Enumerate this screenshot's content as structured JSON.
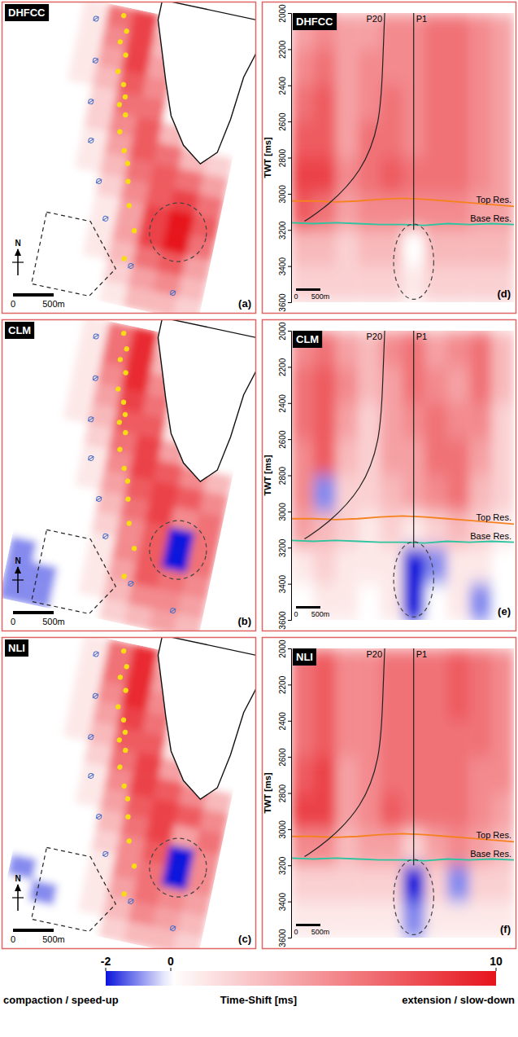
{
  "chart_data": [
    {
      "type": "heatmap",
      "title": "DHFCC",
      "panel_label": "(a)",
      "tick_labels": false,
      "north": "N",
      "scale_bar": [
        "0",
        "500m"
      ],
      "cells": [
        [
          0,
          1,
          6,
          8,
          2,
          0,
          0,
          0
        ],
        [
          0,
          1,
          5,
          8,
          3,
          0,
          0,
          0
        ],
        [
          0,
          1,
          4,
          8,
          4,
          0,
          0,
          0
        ],
        [
          0,
          1,
          3,
          7,
          5,
          0,
          0,
          0
        ],
        [
          0,
          0,
          2,
          6,
          6,
          0,
          0,
          0
        ],
        [
          0,
          0,
          2,
          5,
          7,
          3,
          0,
          0
        ],
        [
          0,
          0,
          1,
          4,
          7,
          6,
          3,
          2
        ],
        [
          0,
          0,
          1,
          3,
          6,
          7,
          6,
          4
        ],
        [
          0,
          0,
          0,
          2,
          5,
          7,
          8,
          6
        ],
        [
          0,
          0,
          0,
          1,
          4,
          8,
          10,
          7
        ],
        [
          0,
          0,
          0,
          1,
          4,
          8,
          10,
          6
        ],
        [
          0,
          0,
          0,
          1,
          3,
          6,
          7,
          4
        ],
        [
          0,
          0,
          0,
          0,
          2,
          4,
          5,
          3
        ],
        [
          0,
          0,
          0,
          0,
          1,
          3,
          3,
          2
        ]
      ]
    },
    {
      "type": "heatmap",
      "title": "CLM",
      "panel_label": "(b)",
      "tick_labels": false,
      "north": "N",
      "scale_bar": [
        "0",
        "500m"
      ],
      "cells": [
        [
          0,
          1,
          6,
          9,
          2,
          0,
          0,
          0
        ],
        [
          0,
          1,
          6,
          9,
          3,
          0,
          0,
          0
        ],
        [
          0,
          1,
          5,
          9,
          5,
          0,
          0,
          0
        ],
        [
          0,
          1,
          4,
          8,
          6,
          0,
          0,
          0
        ],
        [
          0,
          1,
          3,
          7,
          7,
          1,
          0,
          0
        ],
        [
          0,
          0,
          2,
          6,
          8,
          4,
          1,
          0
        ],
        [
          0,
          0,
          1,
          5,
          8,
          7,
          5,
          3
        ],
        [
          0,
          0,
          1,
          4,
          7,
          8,
          7,
          5
        ],
        [
          0,
          0,
          0,
          3,
          6,
          8,
          5,
          6
        ],
        [
          0,
          0,
          0,
          2,
          5,
          7,
          -2,
          6
        ],
        [
          0,
          0,
          0,
          1,
          5,
          7,
          -2,
          6
        ],
        [
          -1,
          0,
          0,
          1,
          4,
          7,
          6,
          5
        ],
        [
          -1,
          -1,
          0,
          1,
          3,
          5,
          5,
          4
        ],
        [
          -1,
          -1,
          0,
          0,
          2,
          3,
          4,
          3
        ]
      ]
    },
    {
      "type": "heatmap",
      "title": "NLI",
      "panel_label": "(c)",
      "tick_labels": false,
      "north": "N",
      "scale_bar": [
        "0",
        "500m"
      ],
      "cells": [
        [
          0,
          1,
          6,
          9,
          3,
          0,
          0,
          0
        ],
        [
          0,
          1,
          6,
          9,
          4,
          0,
          0,
          0
        ],
        [
          0,
          1,
          5,
          9,
          5,
          0,
          0,
          0
        ],
        [
          0,
          1,
          4,
          8,
          6,
          0,
          0,
          0
        ],
        [
          0,
          1,
          3,
          7,
          7,
          1,
          0,
          0
        ],
        [
          0,
          0,
          2,
          6,
          8,
          4,
          1,
          0
        ],
        [
          0,
          0,
          1,
          5,
          8,
          7,
          5,
          3
        ],
        [
          0,
          0,
          1,
          4,
          7,
          8,
          7,
          5
        ],
        [
          0,
          0,
          0,
          3,
          6,
          8,
          4,
          6
        ],
        [
          0,
          0,
          0,
          2,
          5,
          7,
          -2,
          5
        ],
        [
          0,
          0,
          0,
          1,
          5,
          6,
          -2,
          5
        ],
        [
          -1,
          0,
          0,
          1,
          4,
          6,
          5,
          4
        ],
        [
          0,
          -1,
          0,
          1,
          3,
          5,
          4,
          3
        ],
        [
          0,
          0,
          0,
          0,
          2,
          3,
          3,
          2
        ]
      ]
    },
    {
      "type": "heatmap",
      "title": "DHFCC",
      "panel_label": "(d)",
      "tick_labels": "y",
      "ylabel": "TWT [ms]",
      "ylim": [
        3600,
        2000
      ],
      "yticks": [
        2000,
        2200,
        2400,
        2600,
        2800,
        3000,
        3200,
        3400,
        3600
      ],
      "wells": [
        "P20",
        "P1"
      ],
      "scale_bar": [
        "0",
        "500m"
      ],
      "horizons": [
        {
          "name": "Top Res.",
          "color": "#f5821f",
          "values": [
            3040,
            3040,
            3045,
            3040,
            3030,
            3025,
            3030,
            3040,
            3050,
            3060,
            3070
          ]
        },
        {
          "name": "Base Res.",
          "color": "#2ec4a0",
          "values": [
            3160,
            3165,
            3160,
            3165,
            3170,
            3170,
            3175,
            3165,
            3170,
            3165,
            3170
          ]
        }
      ],
      "cells": [
        [
          4,
          5,
          4,
          4,
          5,
          5,
          6,
          6,
          5,
          4
        ],
        [
          5,
          6,
          4,
          5,
          5,
          5,
          6,
          6,
          5,
          4
        ],
        [
          6,
          7,
          4,
          5,
          6,
          5,
          6,
          6,
          5,
          4
        ],
        [
          7,
          7,
          4,
          6,
          6,
          5,
          6,
          6,
          5,
          4
        ],
        [
          8,
          8,
          5,
          6,
          7,
          6,
          6,
          6,
          5,
          4
        ],
        [
          7,
          6,
          4,
          5,
          5,
          5,
          5,
          5,
          4,
          4
        ],
        [
          3,
          3,
          2,
          3,
          3,
          0,
          3,
          3,
          3,
          3
        ],
        [
          2,
          2,
          2,
          2,
          2,
          1,
          2,
          2,
          2,
          2
        ]
      ]
    },
    {
      "type": "heatmap",
      "title": "CLM",
      "panel_label": "(e)",
      "tick_labels": "y",
      "ylabel": "TWT [ms]",
      "ylim": [
        3600,
        2000
      ],
      "yticks": [
        2000,
        2200,
        2400,
        2600,
        2800,
        3000,
        3200,
        3400,
        3600
      ],
      "wells": [
        "P20",
        "P1"
      ],
      "scale_bar": [
        "0",
        "500m"
      ],
      "horizons": [
        {
          "name": "Top Res.",
          "color": "#f5821f",
          "values": [
            3040,
            3040,
            3045,
            3040,
            3030,
            3025,
            3030,
            3040,
            3050,
            3060,
            3070
          ]
        },
        {
          "name": "Base Res.",
          "color": "#2ec4a0",
          "values": [
            3160,
            3165,
            3160,
            3165,
            3170,
            3170,
            3175,
            3165,
            3170,
            3165,
            3170
          ]
        }
      ],
      "cells": [
        [
          5,
          6,
          4,
          3,
          5,
          6,
          4,
          5,
          6,
          3
        ],
        [
          6,
          7,
          5,
          3,
          4,
          6,
          5,
          4,
          6,
          3
        ],
        [
          6,
          7,
          4,
          2,
          4,
          5,
          6,
          5,
          5,
          2
        ],
        [
          5,
          7,
          3,
          2,
          4,
          4,
          6,
          6,
          4,
          2
        ],
        [
          5,
          -1,
          2,
          2,
          3,
          4,
          5,
          6,
          3,
          2
        ],
        [
          4,
          3,
          2,
          1,
          2,
          1,
          2,
          3,
          2,
          1
        ],
        [
          1,
          2,
          1,
          1,
          1,
          -2,
          -1,
          1,
          1,
          0
        ],
        [
          0,
          1,
          1,
          0,
          1,
          -2,
          0,
          1,
          -1,
          0
        ]
      ]
    },
    {
      "type": "heatmap",
      "title": "NLI",
      "panel_label": "(f)",
      "tick_labels": "y",
      "ylabel": "TWT [ms]",
      "ylim": [
        3600,
        2000
      ],
      "yticks": [
        2000,
        2200,
        2400,
        2600,
        2800,
        3000,
        3200,
        3400,
        3600
      ],
      "wells": [
        "P20",
        "P1"
      ],
      "scale_bar": [
        "0",
        "500m"
      ],
      "horizons": [
        {
          "name": "Top Res.",
          "color": "#f5821f",
          "values": [
            3040,
            3040,
            3045,
            3040,
            3030,
            3025,
            3030,
            3040,
            3050,
            3060,
            3070
          ]
        },
        {
          "name": "Base Res.",
          "color": "#2ec4a0",
          "values": [
            3160,
            3165,
            3160,
            3165,
            3170,
            3170,
            3175,
            3165,
            3170,
            3165,
            3170
          ]
        }
      ],
      "cells": [
        [
          6,
          7,
          5,
          5,
          6,
          6,
          6,
          7,
          6,
          5
        ],
        [
          6,
          7,
          5,
          5,
          6,
          6,
          6,
          7,
          6,
          5
        ],
        [
          6,
          7,
          5,
          5,
          6,
          6,
          6,
          6,
          6,
          5
        ],
        [
          7,
          8,
          4,
          5,
          6,
          6,
          6,
          6,
          5,
          5
        ],
        [
          8,
          8,
          4,
          5,
          7,
          6,
          6,
          6,
          5,
          4
        ],
        [
          5,
          5,
          3,
          4,
          4,
          2,
          4,
          5,
          4,
          3
        ],
        [
          2,
          2,
          2,
          2,
          2,
          -2,
          2,
          -1,
          2,
          2
        ],
        [
          1,
          1,
          1,
          1,
          1,
          -1,
          1,
          1,
          1,
          1
        ]
      ]
    }
  ],
  "colorbar": {
    "label": "Time-Shift [ms]",
    "left_label": "compaction / speed-up",
    "right_label": "extension / slow-down",
    "range": [
      -2,
      10
    ],
    "ticks": [
      -2,
      0,
      10
    ]
  }
}
